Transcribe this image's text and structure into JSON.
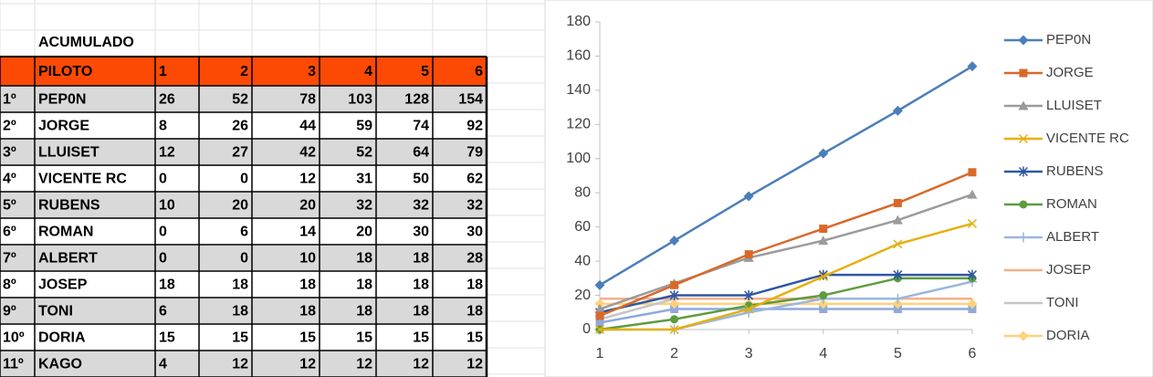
{
  "table": {
    "title": "ACUMULADO",
    "header": [
      "PILOTO",
      "1",
      "2",
      "3",
      "4",
      "5",
      "6"
    ],
    "rows": [
      [
        "1º",
        "PEP0N",
        26,
        52,
        78,
        103,
        128,
        154
      ],
      [
        "2º",
        "JORGE",
        8,
        26,
        44,
        59,
        74,
        92
      ],
      [
        "3º",
        "LLUISET",
        12,
        27,
        42,
        52,
        64,
        79
      ],
      [
        "4º",
        "VICENTE RC",
        0,
        0,
        12,
        31,
        50,
        62
      ],
      [
        "5º",
        "RUBENS",
        10,
        20,
        20,
        32,
        32,
        32
      ],
      [
        "6º",
        "ROMAN",
        0,
        6,
        14,
        20,
        30,
        30
      ],
      [
        "7º",
        "ALBERT",
        0,
        0,
        10,
        18,
        18,
        28
      ],
      [
        "8º",
        "JOSEP",
        18,
        18,
        18,
        18,
        18,
        18
      ],
      [
        "9º",
        "TONI",
        6,
        18,
        18,
        18,
        18,
        18
      ],
      [
        "10º",
        "DORIA",
        15,
        15,
        15,
        15,
        15,
        15
      ],
      [
        "11º",
        "KAGO",
        4,
        12,
        12,
        12,
        12,
        12
      ]
    ]
  },
  "chart_data": {
    "type": "line",
    "x": [
      1,
      2,
      3,
      4,
      5,
      6
    ],
    "xlim": [
      1,
      6
    ],
    "xticks": [
      1,
      2,
      3,
      4,
      5,
      6
    ],
    "ylim": [
      0,
      180
    ],
    "yticks": [
      0,
      20,
      40,
      60,
      80,
      100,
      120,
      140,
      160,
      180
    ],
    "series": [
      {
        "name": "PEP0N",
        "color": "#4a7ebb",
        "marker": "diamond",
        "values": [
          26,
          52,
          78,
          103,
          128,
          154
        ]
      },
      {
        "name": "JORGE",
        "color": "#d8692a",
        "marker": "square",
        "values": [
          8,
          26,
          44,
          59,
          74,
          92
        ]
      },
      {
        "name": "LLUISET",
        "color": "#9b9b9b",
        "marker": "triangle",
        "values": [
          12,
          27,
          42,
          52,
          64,
          79
        ]
      },
      {
        "name": "VICENTE RC",
        "color": "#e5b00f",
        "marker": "x",
        "values": [
          0,
          0,
          12,
          31,
          50,
          62
        ]
      },
      {
        "name": "RUBENS",
        "color": "#2f57a3",
        "marker": "star",
        "values": [
          10,
          20,
          20,
          32,
          32,
          32
        ]
      },
      {
        "name": "ROMAN",
        "color": "#5d9c3f",
        "marker": "circle",
        "values": [
          0,
          6,
          14,
          20,
          30,
          30
        ]
      },
      {
        "name": "ALBERT",
        "color": "#9ab7de",
        "marker": "plus",
        "values": [
          0,
          0,
          10,
          18,
          18,
          28
        ]
      },
      {
        "name": "JOSEP",
        "color": "#f4b08a",
        "marker": "none",
        "values": [
          18,
          18,
          18,
          18,
          18,
          18
        ]
      },
      {
        "name": "TONI",
        "color": "#c6c6c6",
        "marker": "none",
        "values": [
          6,
          18,
          18,
          18,
          18,
          18
        ]
      },
      {
        "name": "DORIA",
        "color": "#ffd27a",
        "marker": "diamond",
        "values": [
          15,
          15,
          15,
          15,
          15,
          15
        ]
      },
      {
        "color": "#8fa9dc",
        "marker": "square",
        "values": [
          4,
          12,
          12,
          12,
          12,
          12
        ]
      }
    ]
  }
}
